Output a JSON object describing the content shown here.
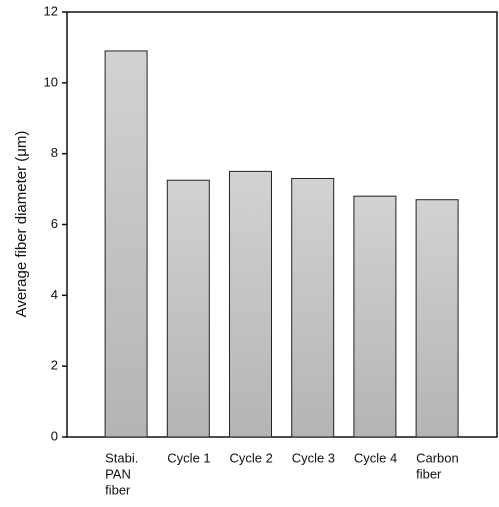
{
  "chart_data": {
    "type": "bar",
    "ylabel": "Average fiber diameter (μm)",
    "categories": [
      [
        "Stabi.",
        "PAN",
        "fiber"
      ],
      [
        "Cycle 1"
      ],
      [
        "Cycle 2"
      ],
      [
        "Cycle 3"
      ],
      [
        "Cycle 4"
      ],
      [
        "Carbon",
        "fiber"
      ]
    ],
    "values": [
      10.9,
      7.25,
      7.5,
      7.3,
      6.8,
      6.7
    ],
    "color": "#c4c4c4",
    "ylim": [
      0,
      12
    ],
    "yticks": [
      0,
      2,
      4,
      6,
      8,
      10,
      12
    ]
  }
}
